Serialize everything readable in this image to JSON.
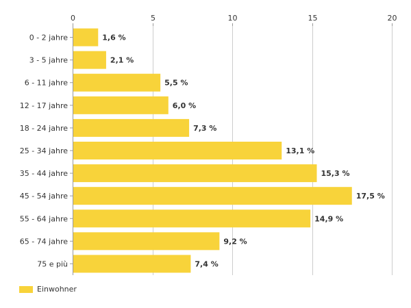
{
  "chart_data": {
    "type": "bar",
    "orientation": "horizontal",
    "categories": [
      "0 - 2 jahre",
      "3 - 5 jahre",
      "6 - 11 jahre",
      "12 - 17 jahre",
      "18 - 24 jahre",
      "25 - 34 jahre",
      "35 - 44 jahre",
      "45 - 54 jahre",
      "55 - 64 jahre",
      "65 - 74 jahre",
      "75 e più"
    ],
    "series": [
      {
        "name": "Einwohner",
        "values": [
          1.6,
          2.1,
          5.5,
          6.0,
          7.3,
          13.1,
          15.3,
          17.5,
          14.9,
          9.2,
          7.4
        ],
        "labels": [
          "1,6 %",
          "2,1 %",
          "5,5 %",
          "6,0 %",
          "7,3 %",
          "13,1 %",
          "15,3 %",
          "17,5 %",
          "14,9 %",
          "9,2 %",
          "7,4 %"
        ],
        "color": "#f8d33a"
      }
    ],
    "xlim": [
      0,
      20
    ],
    "xticks": [
      0,
      5,
      10,
      15,
      20
    ],
    "xtick_labels": [
      "0",
      "5",
      "10",
      "15",
      "20"
    ],
    "axis_position": "top",
    "grid": true,
    "legend": "bottom-left"
  }
}
